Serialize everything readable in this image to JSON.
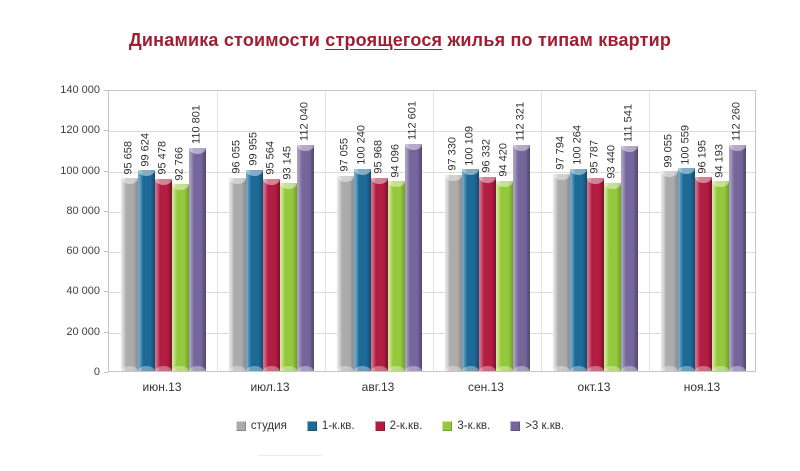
{
  "title": {
    "prefix": "Динамика стоимости ",
    "underlined": "строящегося",
    "suffix": " жилья по типам квартир"
  },
  "chart_data": {
    "type": "bar",
    "title": "Динамика стоимости строящегося жилья по типам квартир",
    "categories": [
      "июн.13",
      "июл.13",
      "авг.13",
      "сен.13",
      "окт.13",
      "ноя.13"
    ],
    "series": [
      {
        "name": "студия",
        "color": "#ABABAB",
        "light": "#E2E2E2",
        "dark": "#8A8A8A",
        "values": [
          95658,
          96055,
          97055,
          97330,
          97794,
          99055
        ]
      },
      {
        "name": "1-к.кв.",
        "color": "#1E6A96",
        "light": "#6FA8C6",
        "dark": "#124C6E",
        "values": [
          99624,
          99955,
          100240,
          100109,
          100264,
          100559
        ]
      },
      {
        "name": "2-к.кв.",
        "color": "#B11E42",
        "light": "#D56C89",
        "dark": "#7E1031",
        "values": [
          95478,
          95564,
          95968,
          96332,
          95787,
          96195
        ]
      },
      {
        "name": "3-к.кв.",
        "color": "#95C93D",
        "light": "#CCE894",
        "dark": "#6FA023",
        "values": [
          92766,
          93145,
          94096,
          94420,
          93440,
          94193
        ]
      },
      {
        "name": ">3 к.кв.",
        "color": "#75679C",
        "light": "#A99FC4",
        "dark": "#51466F",
        "values": [
          110801,
          112040,
          112601,
          112321,
          111541,
          112260
        ]
      }
    ],
    "xlabel": "",
    "ylabel": "",
    "ylim": [
      0,
      140000
    ],
    "ytick_step": 20000,
    "ytick_labels": [
      "0",
      "20 000",
      "40 000",
      "60 000",
      "80 000",
      "100 000",
      "120 000",
      "140 000"
    ],
    "grid": true,
    "legend_position": "bottom",
    "value_labels": "rotated vertical above each bar, thousands separated by space"
  }
}
